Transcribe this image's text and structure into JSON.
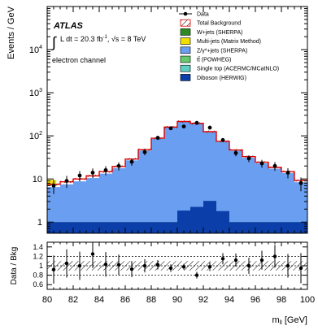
{
  "chart_data": {
    "type": "histogram",
    "experiment": "ATLAS",
    "lumi_text": "L dt = 20.3 fb",
    "lumi_sup": "-1",
    "energy_text": ", √s = 8 TeV",
    "channel": "electron channel",
    "ylabel": "Events / GeV",
    "ratio_ylabel": "Data / Bkg",
    "xlabel": "m",
    "xlabel_sub": "ll",
    "xlabel_unit": " [GeV]",
    "xlim": [
      80,
      100
    ],
    "ylim": [
      0.55,
      100000
    ],
    "yscale": "log",
    "ratio_ylim": [
      0.5,
      1.5
    ],
    "x_ticks": [
      "80",
      "82",
      "84",
      "86",
      "88",
      "90",
      "92",
      "94",
      "96",
      "98",
      "100"
    ],
    "y_ticks": [
      {
        "value": 1,
        "base": "1",
        "exp": ""
      },
      {
        "value": 10,
        "base": "10",
        "exp": ""
      },
      {
        "value": 100,
        "base": "10",
        "exp": "2"
      },
      {
        "value": 1000,
        "base": "10",
        "exp": "3"
      },
      {
        "value": 10000,
        "base": "10",
        "exp": "4"
      }
    ],
    "ratio_ticks": [
      "0.6",
      "0.8",
      "1",
      "1.2",
      "1.4"
    ],
    "bin_edges": [
      80,
      81,
      82,
      83,
      84,
      85,
      86,
      87,
      88,
      89,
      90,
      91,
      92,
      93,
      94,
      95,
      96,
      97,
      98,
      99,
      100
    ],
    "background_total": [
      7.5,
      8.6,
      10,
      11.8,
      14.8,
      19.5,
      29,
      48,
      88,
      160,
      215,
      195,
      125,
      75,
      47,
      33,
      24.5,
      18.5,
      14.8,
      9.2
    ],
    "zgamma_jets": [
      6.5,
      7.5,
      8.8,
      10.5,
      13.3,
      17.8,
      27,
      45.5,
      85,
      156,
      210,
      190,
      121,
      72,
      45,
      31,
      23,
      17.3,
      13.7,
      8.4
    ],
    "ttbar_top": [
      1.0,
      1.0,
      1.0,
      1.0,
      1.0,
      1.0,
      1.0,
      1.0,
      1.0,
      1.0,
      1.42,
      1.35,
      1.8,
      1.42,
      1.0,
      1.0,
      1.0,
      1.0,
      1.0,
      1.0
    ],
    "diboson": [
      1.0,
      1.0,
      1.0,
      1.0,
      1.0,
      1.0,
      1.0,
      1.0,
      1.0,
      1.0,
      1.85,
      2.25,
      3.1,
      1.8,
      1.0,
      1.0,
      1.0,
      1.0,
      1.0,
      1.0
    ],
    "data": {
      "x": [
        80.5,
        81.5,
        82.5,
        83.5,
        84.5,
        85.5,
        86.5,
        87.5,
        88.5,
        89.5,
        90.5,
        91.5,
        92.5,
        93.5,
        94.5,
        95.5,
        96.5,
        97.5,
        98.5,
        99.5
      ],
      "y": [
        7,
        9,
        12,
        14,
        16,
        20,
        25,
        42,
        90,
        150,
        165,
        200,
        155,
        80,
        40,
        30,
        23,
        20,
        14,
        8
      ],
      "err": [
        2.5,
        2.8,
        3.2,
        3.5,
        3.8,
        4.3,
        4.8,
        6.5,
        9.5,
        12.3,
        12.8,
        14.1,
        12.4,
        8.9,
        6.3,
        5.5,
        4.8,
        4.5,
        3.7,
        2.8
      ]
    },
    "ratio": {
      "x": [
        80.5,
        81.5,
        82.5,
        83.5,
        84.5,
        85.5,
        86.5,
        87.5,
        88.5,
        89.5,
        90.5,
        91.5,
        92.5,
        93.5,
        94.5,
        95.5,
        96.5,
        97.5,
        98.5,
        99.5
      ],
      "y": [
        0.92,
        1.05,
        1.0,
        1.25,
        1.03,
        1.02,
        0.93,
        1.0,
        1.02,
        0.95,
        0.98,
        0.8,
        0.98,
        1.15,
        1.12,
        1.0,
        1.12,
        1.2,
        1.0,
        0.95
      ],
      "err": [
        0.3,
        0.3,
        0.3,
        0.3,
        0.26,
        0.22,
        0.17,
        0.14,
        0.1,
        0.08,
        0.06,
        0.07,
        0.09,
        0.12,
        0.14,
        0.17,
        0.2,
        0.24,
        0.25,
        0.32
      ]
    },
    "legend": [
      {
        "label": "Data",
        "kind": "marker"
      },
      {
        "label": "Total Background",
        "kind": "hatch"
      },
      {
        "label": "W+jets (SHERPA)",
        "kind": "box",
        "color": "#2e8b22"
      },
      {
        "label": "Multi-jets (Matrix Method)",
        "kind": "box",
        "color": "#f2e000"
      },
      {
        "label": "Z/γ*+jets (SHERPA)",
        "kind": "box",
        "color": "#6a9ef0"
      },
      {
        "label": "tt̄ (POWHEG)",
        "kind": "box",
        "color": "#66c96b"
      },
      {
        "label": "Single top (ACERMC/MCatNLO)",
        "kind": "box",
        "color": "#5fcfc4"
      },
      {
        "label": "Diboson (HERWIG)",
        "kind": "box",
        "color": "#0b3ea8"
      }
    ],
    "colors": {
      "zgamma": "#6a9ef0",
      "ttbar": "#66c96b",
      "diboson": "#0b3ea8",
      "total_line": "#e00000",
      "multijet": "#f2e000"
    },
    "legend_position": "top-right"
  }
}
